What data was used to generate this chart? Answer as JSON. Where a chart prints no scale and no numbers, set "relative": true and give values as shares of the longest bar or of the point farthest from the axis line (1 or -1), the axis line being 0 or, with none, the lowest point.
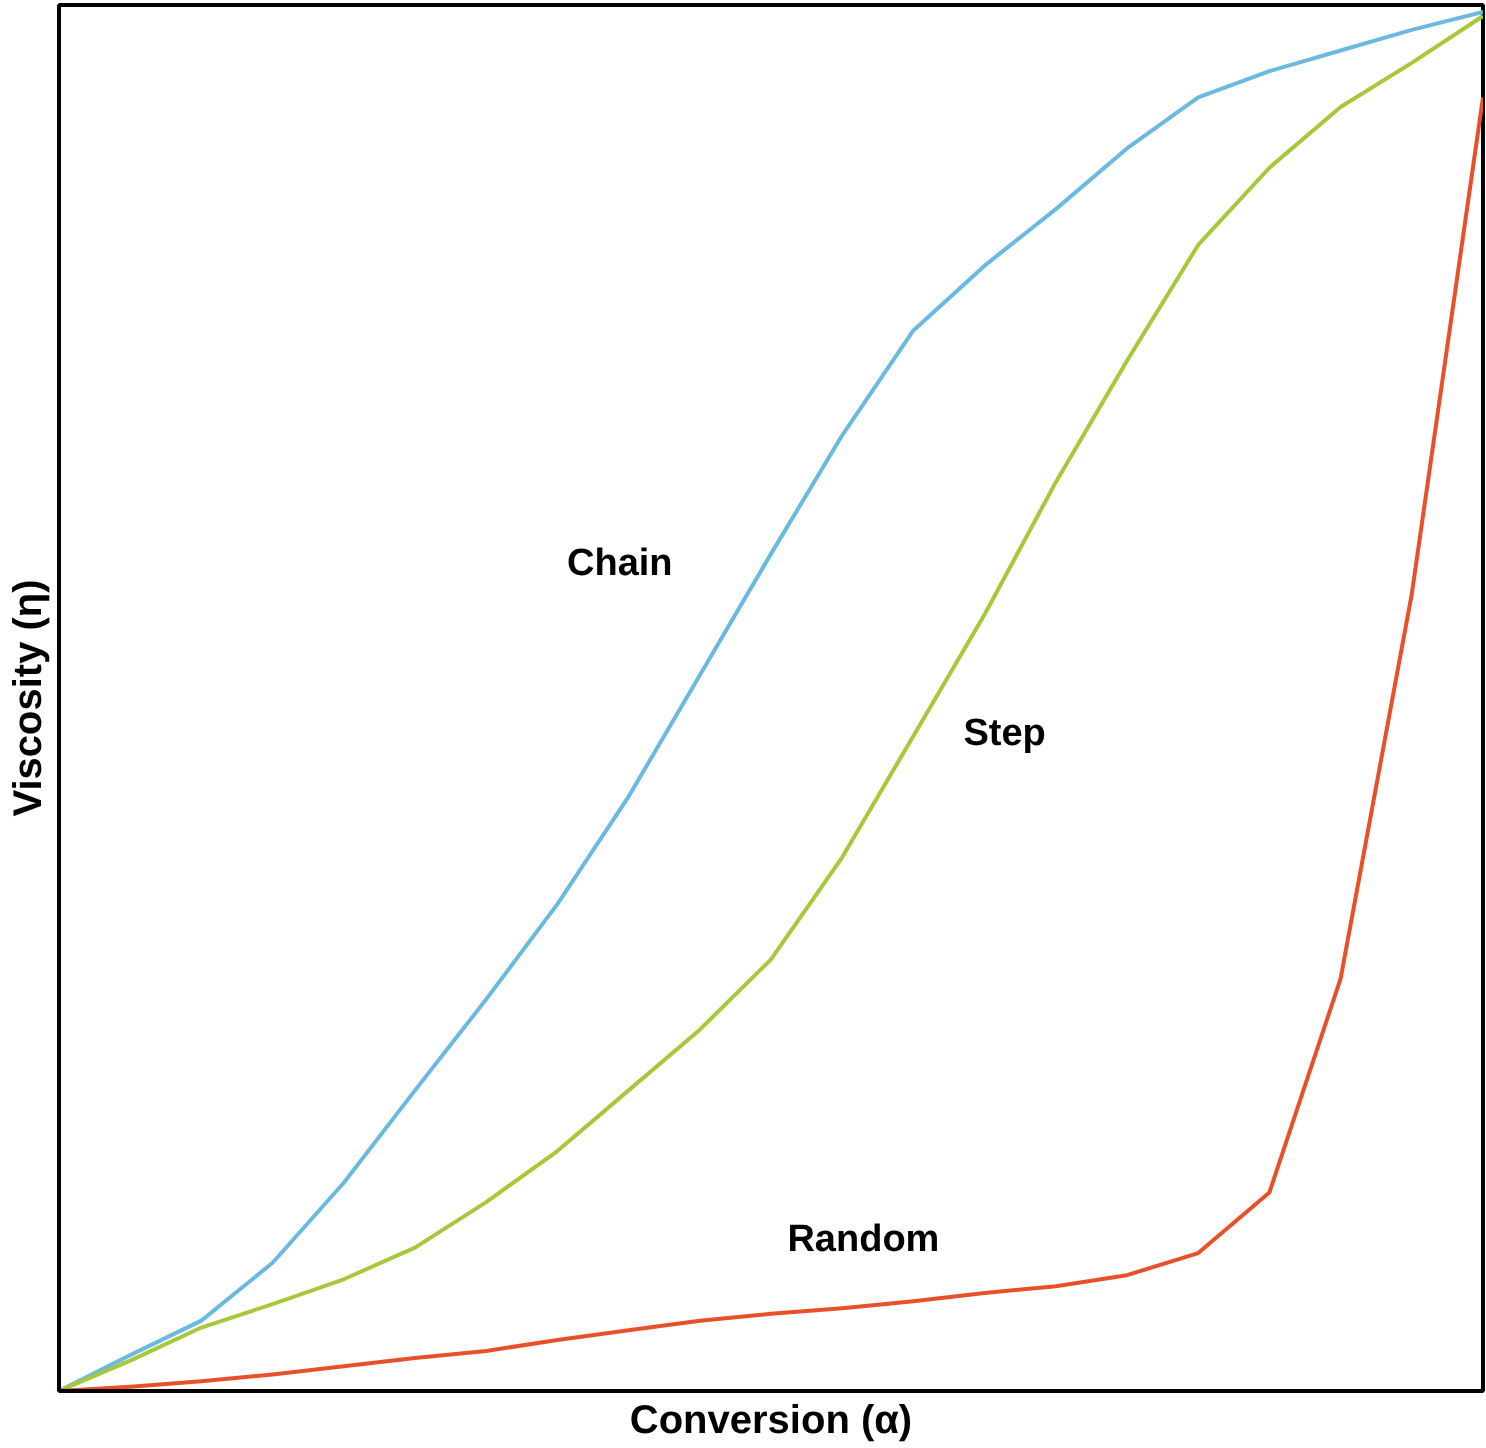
{
  "chart_data": {
    "type": "line",
    "relative": true,
    "xlabel": "Conversion (α)",
    "ylabel": "Viscosity (η)",
    "marker": "none",
    "line_style": "solid",
    "categories": [
      null,
      null,
      null,
      null,
      null,
      null,
      null,
      null,
      null,
      null,
      null,
      null,
      null,
      null,
      null,
      null,
      null,
      null,
      null,
      null,
      null
    ],
    "series": [
      {
        "name": "Chain",
        "color": "#6bb8e0",
        "values": [
          0,
          0.026,
          0.051,
          0.093,
          0.151,
          0.218,
          0.284,
          0.353,
          0.431,
          0.519,
          0.607,
          0.693,
          0.769,
          0.816,
          0.857,
          0.901,
          0.938,
          0.957,
          0.972,
          0.987,
          1
        ]
      },
      {
        "name": "Step",
        "color": "#a6c83a",
        "values": [
          0,
          0.022,
          0.046,
          0.063,
          0.081,
          0.104,
          0.137,
          0.174,
          0.218,
          0.262,
          0.313,
          0.387,
          0.475,
          0.563,
          0.659,
          0.747,
          0.831,
          0.887,
          0.931,
          0.963,
          0.997
        ]
      },
      {
        "name": "Random",
        "color": "#e8502a",
        "values": [
          0,
          0.003,
          0.007,
          0.012,
          0.018,
          0.024,
          0.029,
          0.037,
          0.044,
          0.051,
          0.056,
          0.06,
          0.065,
          0.071,
          0.076,
          0.084,
          0.1,
          0.144,
          0.299,
          0.578,
          0.938
        ]
      }
    ]
  }
}
